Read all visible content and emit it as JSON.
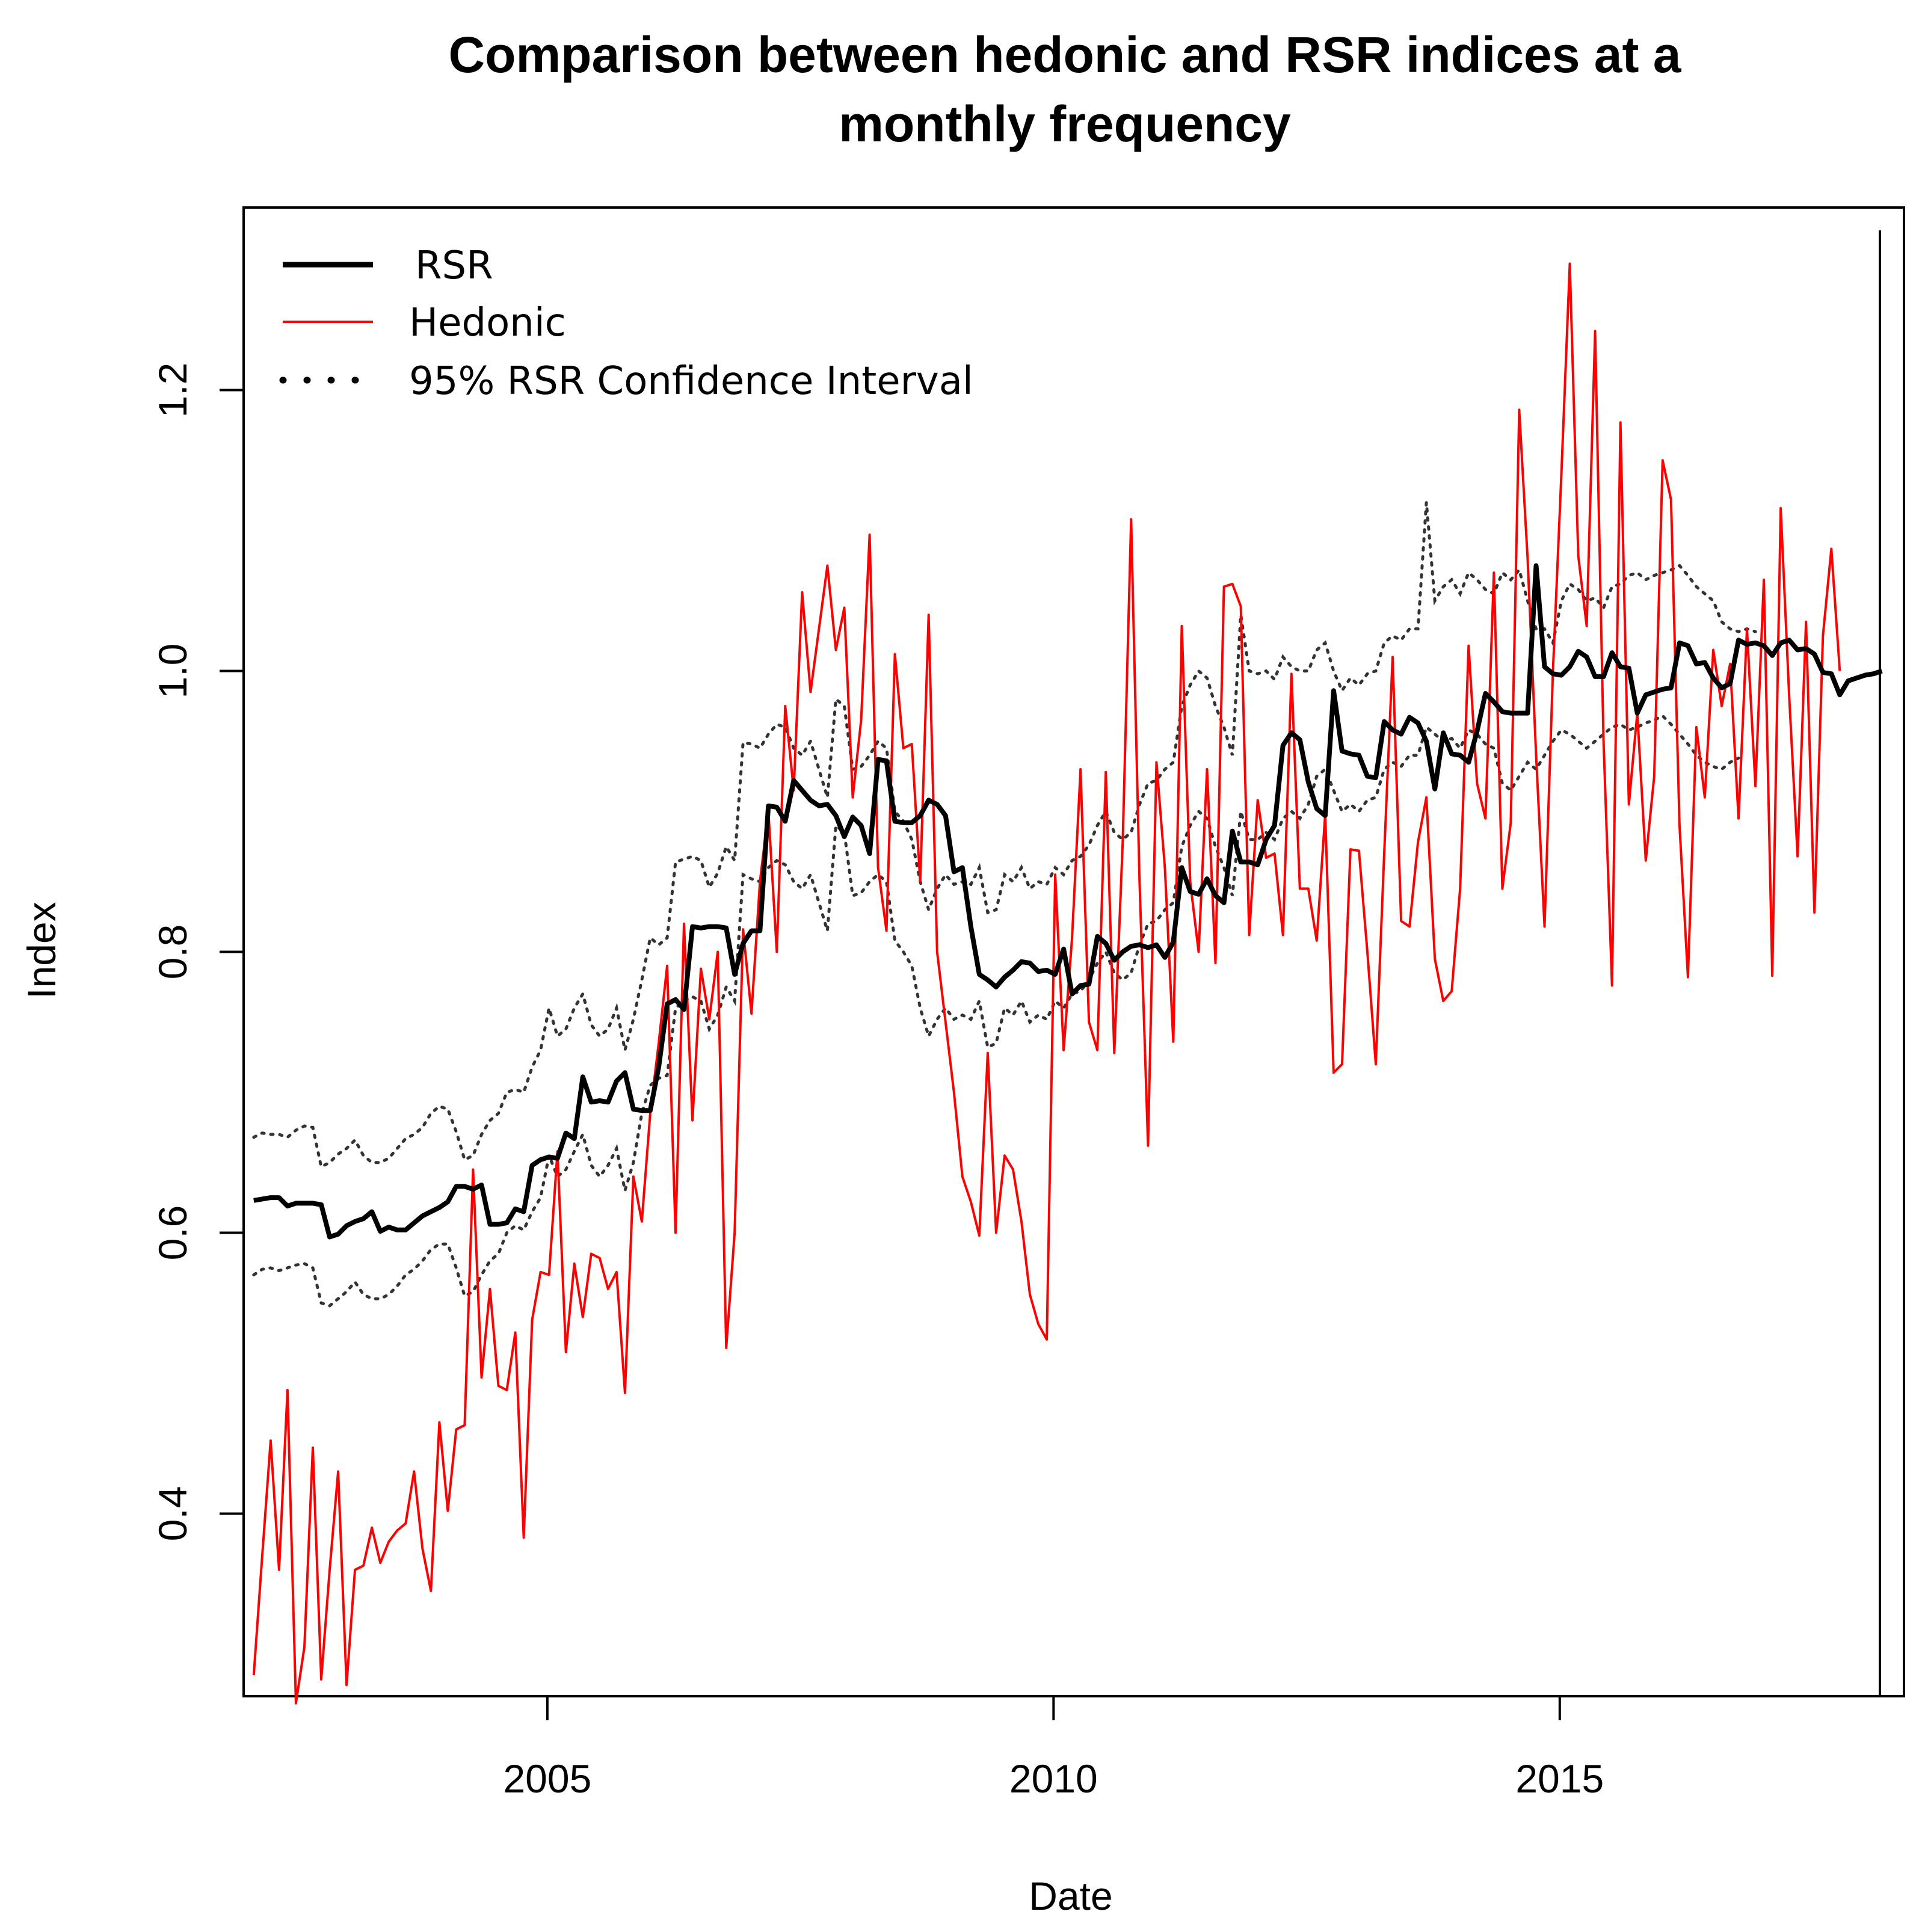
{
  "chart_data": {
    "type": "line",
    "title_lines": [
      "Comparison between hedonic and RSR indices at a",
      "monthly frequency"
    ],
    "xlabel": "Date",
    "ylabel": "Index",
    "xlim": [
      2002.0,
      2018.4
    ],
    "ylim": [
      0.27,
      1.33
    ],
    "x_ticks": [
      2005,
      2010,
      2015
    ],
    "x_tick_labels": [
      "2005",
      "2010",
      "2015"
    ],
    "y_ticks": [
      0.4,
      0.6,
      0.8,
      1.0,
      1.2
    ],
    "y_tick_labels": [
      "0.4",
      "0.6",
      "0.8",
      "1.0",
      "1.2"
    ],
    "legend": {
      "position": "top-left",
      "entries": [
        {
          "label": "RSR",
          "color": "#000000",
          "style": "thick-solid"
        },
        {
          "label": "Hedonic",
          "color": "#ff0000",
          "style": "solid"
        },
        {
          "label": "95% RSR Confidence Interval",
          "color": "#000000",
          "style": "dotted"
        }
      ]
    },
    "x_start": 2002.1,
    "x_step": 0.08333,
    "colors": {
      "rsr": "#000000",
      "hedonic": "#ff0000",
      "ci": "#333333"
    },
    "series": [
      {
        "name": "RSR",
        "values": [
          0.623,
          0.624,
          0.625,
          0.625,
          0.619,
          0.621,
          0.621,
          0.621,
          0.62,
          0.597,
          0.599,
          0.605,
          0.608,
          0.61,
          0.615,
          0.601,
          0.604,
          0.602,
          0.602,
          0.607,
          0.612,
          0.615,
          0.618,
          0.622,
          0.633,
          0.633,
          0.631,
          0.634,
          0.606,
          0.606,
          0.607,
          0.617,
          0.615,
          0.648,
          0.652,
          0.654,
          0.653,
          0.671,
          0.667,
          0.711,
          0.693,
          0.694,
          0.693,
          0.708,
          0.714,
          0.688,
          0.687,
          0.687,
          0.718,
          0.763,
          0.766,
          0.759,
          0.818,
          0.817,
          0.818,
          0.818,
          0.817,
          0.784,
          0.806,
          0.815,
          0.815,
          0.904,
          0.903,
          0.893,
          0.922,
          0.915,
          0.908,
          0.904,
          0.905,
          0.897,
          0.882,
          0.896,
          0.89,
          0.87,
          0.937,
          0.936,
          0.893,
          0.892,
          0.892,
          0.897,
          0.908,
          0.905,
          0.897,
          0.857,
          0.86,
          0.818,
          0.784,
          0.78,
          0.775,
          0.782,
          0.787,
          0.793,
          0.792,
          0.786,
          0.787,
          0.784,
          0.802,
          0.77,
          0.776,
          0.777,
          0.811,
          0.806,
          0.794,
          0.8,
          0.804,
          0.805,
          0.803,
          0.805,
          0.796,
          0.807,
          0.86,
          0.843,
          0.841,
          0.852,
          0.84,
          0.835,
          0.886,
          0.864,
          0.864,
          0.862,
          0.88,
          0.89,
          0.947,
          0.956,
          0.951,
          0.921,
          0.902,
          0.897,
          0.986,
          0.943,
          0.941,
          0.94,
          0.925,
          0.924,
          0.964,
          0.958,
          0.955,
          0.967,
          0.963,
          0.95,
          0.916,
          0.956,
          0.941,
          0.94,
          0.935,
          0.957,
          0.984,
          0.978,
          0.971,
          0.97,
          0.97,
          0.97,
          1.075,
          1.003,
          0.998,
          0.997,
          1.003,
          1.014,
          1.01,
          0.996,
          0.996,
          1.013,
          1.003,
          1.002,
          0.97,
          0.983,
          0.985,
          0.987,
          0.988,
          1.02,
          1.018,
          1.005,
          1.006,
          0.995,
          0.988,
          0.991,
          1.022,
          1.019,
          1.02,
          1.018,
          1.011,
          1.02,
          1.022,
          1.015,
          1.016,
          1.012,
          0.999,
          0.998,
          0.983,
          0.993,
          0.995,
          0.997,
          0.998,
          1.0
        ]
      },
      {
        "name": "Hedonic",
        "values": [
          0.285,
          0.37,
          0.452,
          0.36,
          0.488,
          0.265,
          0.305,
          0.447,
          0.282,
          0.36,
          0.43,
          0.278,
          0.36,
          0.363,
          0.39,
          0.365,
          0.38,
          0.388,
          0.393,
          0.43,
          0.375,
          0.345,
          0.465,
          0.402,
          0.46,
          0.463,
          0.645,
          0.497,
          0.56,
          0.491,
          0.488,
          0.529,
          0.383,
          0.538,
          0.572,
          0.57,
          0.658,
          0.515,
          0.578,
          0.54,
          0.585,
          0.582,
          0.56,
          0.572,
          0.486,
          0.64,
          0.608,
          0.685,
          0.735,
          0.79,
          0.6,
          0.82,
          0.68,
          0.788,
          0.752,
          0.8,
          0.518,
          0.6,
          0.816,
          0.756,
          0.85,
          0.9,
          0.8,
          0.975,
          0.915,
          1.056,
          0.985,
          1.03,
          1.075,
          1.015,
          1.045,
          0.91,
          0.965,
          1.097,
          0.86,
          0.815,
          1.012,
          0.945,
          0.948,
          0.85,
          1.04,
          0.8,
          0.75,
          0.7,
          0.64,
          0.622,
          0.598,
          0.728,
          0.6,
          0.655,
          0.645,
          0.608,
          0.556,
          0.535,
          0.524,
          0.855,
          0.73,
          0.81,
          0.93,
          0.75,
          0.73,
          0.928,
          0.728,
          0.878,
          1.108,
          0.85,
          0.662,
          0.935,
          0.86,
          0.736,
          1.032,
          0.85,
          0.8,
          0.93,
          0.792,
          1.06,
          1.062,
          1.046,
          0.812,
          0.908,
          0.867,
          0.87,
          0.812,
          0.998,
          0.845,
          0.845,
          0.808,
          0.898,
          0.714,
          0.72,
          0.873,
          0.872,
          0.8,
          0.72,
          0.87,
          1.01,
          0.822,
          0.818,
          0.878,
          0.91,
          0.795,
          0.765,
          0.772,
          0.845,
          1.018,
          0.92,
          0.895,
          1.07,
          0.845,
          0.892,
          1.186,
          1.08,
          0.94,
          0.818,
          1.0,
          1.14,
          1.29,
          1.082,
          1.032,
          1.242,
          0.95,
          0.776,
          1.177,
          0.905,
          0.97,
          0.865,
          0.925,
          1.15,
          1.122,
          0.89,
          0.782,
          0.96,
          0.91,
          1.015,
          0.975,
          1.005,
          0.895,
          1.03,
          0.918,
          1.065,
          0.783,
          1.116,
          0.982,
          0.868,
          1.035,
          0.828,
          1.025,
          1.087,
          1.0
        ]
      },
      {
        "name": "95% RSR Confidence Interval (upper)",
        "values": [
          0.668,
          0.671,
          0.67,
          0.67,
          0.668,
          0.673,
          0.676,
          0.675,
          0.647,
          0.65,
          0.656,
          0.66,
          0.666,
          0.655,
          0.65,
          0.65,
          0.653,
          0.66,
          0.667,
          0.67,
          0.675,
          0.685,
          0.69,
          0.688,
          0.672,
          0.652,
          0.655,
          0.67,
          0.68,
          0.685,
          0.7,
          0.702,
          0.7,
          0.718,
          0.73,
          0.76,
          0.74,
          0.745,
          0.76,
          0.77,
          0.748,
          0.74,
          0.745,
          0.76,
          0.73,
          0.752,
          0.78,
          0.81,
          0.805,
          0.81,
          0.864,
          0.866,
          0.868,
          0.865,
          0.846,
          0.856,
          0.875,
          0.865,
          0.949,
          0.948,
          0.945,
          0.955,
          0.962,
          0.96,
          0.945,
          0.94,
          0.95,
          0.93,
          0.91,
          0.98,
          0.975,
          0.93,
          0.932,
          0.94,
          0.95,
          0.945,
          0.9,
          0.893,
          0.88,
          0.85,
          0.83,
          0.845,
          0.855,
          0.848,
          0.85,
          0.848,
          0.86,
          0.828,
          0.83,
          0.855,
          0.85,
          0.86,
          0.845,
          0.85,
          0.848,
          0.86,
          0.855,
          0.865,
          0.868,
          0.876,
          0.89,
          0.9,
          0.885,
          0.88,
          0.885,
          0.905,
          0.92,
          0.922,
          0.93,
          0.935,
          0.975,
          0.99,
          1.0,
          0.995,
          0.975,
          0.96,
          0.94,
          1.04,
          1.0,
          0.998,
          1.0,
          0.994,
          1.01,
          1.003,
          1.0,
          1.0,
          1.015,
          1.02,
          1.0,
          0.986,
          0.995,
          0.99,
          0.998,
          1.0,
          1.02,
          1.025,
          1.022,
          1.03,
          1.03,
          1.12,
          1.05,
          1.06,
          1.065,
          1.055,
          1.07,
          1.065,
          1.058,
          1.055,
          1.07,
          1.065,
          1.072,
          1.05,
          1.03,
          1.03,
          1.02,
          1.05,
          1.062,
          1.058,
          1.05,
          1.052,
          1.045,
          1.06,
          1.062,
          1.068,
          1.07,
          1.065,
          1.068,
          1.07,
          1.072,
          1.075,
          1.068,
          1.06,
          1.055,
          1.05,
          1.035,
          1.03,
          1.028,
          1.03,
          1.028
        ]
      },
      {
        "name": "95% RSR Confidence Interval (lower)",
        "values": [
          0.57,
          0.574,
          0.575,
          0.573,
          0.575,
          0.577,
          0.578,
          0.575,
          0.55,
          0.548,
          0.553,
          0.558,
          0.565,
          0.556,
          0.553,
          0.553,
          0.556,
          0.562,
          0.57,
          0.574,
          0.58,
          0.588,
          0.592,
          0.592,
          0.575,
          0.555,
          0.558,
          0.57,
          0.58,
          0.585,
          0.6,
          0.605,
          0.602,
          0.615,
          0.625,
          0.655,
          0.64,
          0.645,
          0.658,
          0.67,
          0.648,
          0.64,
          0.648,
          0.66,
          0.63,
          0.65,
          0.685,
          0.705,
          0.71,
          0.712,
          0.76,
          0.765,
          0.768,
          0.765,
          0.745,
          0.755,
          0.775,
          0.765,
          0.855,
          0.852,
          0.85,
          0.86,
          0.865,
          0.862,
          0.85,
          0.845,
          0.855,
          0.835,
          0.815,
          0.89,
          0.885,
          0.84,
          0.842,
          0.85,
          0.855,
          0.85,
          0.808,
          0.8,
          0.79,
          0.76,
          0.74,
          0.752,
          0.76,
          0.752,
          0.755,
          0.752,
          0.765,
          0.732,
          0.735,
          0.76,
          0.755,
          0.765,
          0.75,
          0.755,
          0.752,
          0.765,
          0.76,
          0.77,
          0.772,
          0.78,
          0.792,
          0.8,
          0.785,
          0.78,
          0.785,
          0.805,
          0.82,
          0.822,
          0.83,
          0.835,
          0.875,
          0.89,
          0.9,
          0.895,
          0.875,
          0.86,
          0.84,
          0.9,
          0.88,
          0.88,
          0.885,
          0.88,
          0.895,
          0.9,
          0.895,
          0.905,
          0.925,
          0.93,
          0.915,
          0.9,
          0.905,
          0.9,
          0.908,
          0.91,
          0.93,
          0.935,
          0.932,
          0.94,
          0.94,
          0.96,
          0.955,
          0.95,
          0.952,
          0.945,
          0.958,
          0.955,
          0.948,
          0.945,
          0.92,
          0.915,
          0.925,
          0.935,
          0.93,
          0.94,
          0.95,
          0.958,
          0.955,
          0.95,
          0.945,
          0.95,
          0.955,
          0.96,
          0.962,
          0.958,
          0.96,
          0.963,
          0.965,
          0.968,
          0.962,
          0.955,
          0.948,
          0.94,
          0.935,
          0.932,
          0.93,
          0.935,
          0.938
        ]
      }
    ]
  }
}
